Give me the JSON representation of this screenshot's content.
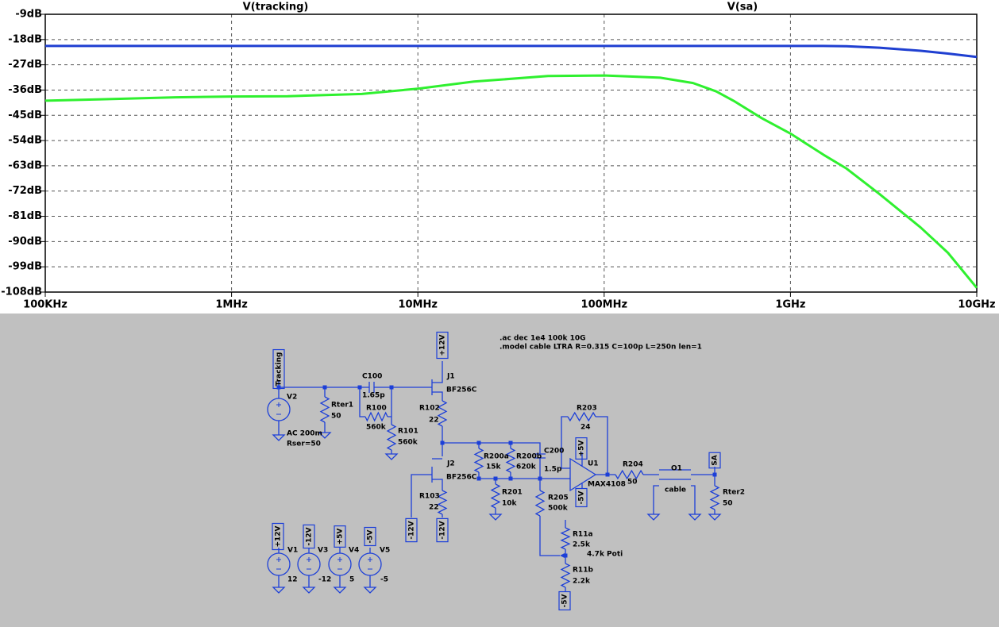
{
  "chart_data": {
    "type": "line",
    "xscale": "log",
    "xlim": [
      100000,
      10000000000
    ],
    "ylim": [
      -108,
      -9
    ],
    "xticks": [
      {
        "value": 100000,
        "label": "100KHz"
      },
      {
        "value": 1000000,
        "label": "1MHz"
      },
      {
        "value": 10000000,
        "label": "10MHz"
      },
      {
        "value": 100000000,
        "label": "100MHz"
      },
      {
        "value": 1000000000,
        "label": "1GHz"
      },
      {
        "value": 10000000000,
        "label": "10GHz"
      }
    ],
    "yticks": [
      {
        "value": -9,
        "label": "-9dB"
      },
      {
        "value": -18,
        "label": "-18dB"
      },
      {
        "value": -27,
        "label": "-27dB"
      },
      {
        "value": -36,
        "label": "-36dB"
      },
      {
        "value": -45,
        "label": "-45dB"
      },
      {
        "value": -54,
        "label": "-54dB"
      },
      {
        "value": -63,
        "label": "-63dB"
      },
      {
        "value": -72,
        "label": "-72dB"
      },
      {
        "value": -81,
        "label": "-81dB"
      },
      {
        "value": -90,
        "label": "-90dB"
      },
      {
        "value": -99,
        "label": "-99dB"
      },
      {
        "value": -108,
        "label": "-108dB"
      }
    ],
    "grid": true,
    "x": [
      100000,
      200000,
      500000,
      1000000,
      2000000,
      5000000,
      10000000,
      20000000,
      50000000,
      100000000,
      200000000,
      300000000,
      400000000,
      500000000,
      700000000,
      1000000000,
      1500000000,
      2000000000,
      3000000000,
      5000000000,
      7000000000,
      10000000000
    ],
    "series": [
      {
        "name": "V(tracking)",
        "color": "#1f3fd1",
        "values": [
          -20.3,
          -20.3,
          -20.3,
          -20.3,
          -20.3,
          -20.3,
          -20.3,
          -20.3,
          -20.3,
          -20.3,
          -20.3,
          -20.3,
          -20.3,
          -20.3,
          -20.3,
          -20.3,
          -20.3,
          -20.4,
          -20.9,
          -22,
          -23,
          -24.2
        ]
      },
      {
        "name": "V(sa)",
        "color": "#2ff02f",
        "values": [
          -39.8,
          -39.3,
          -38.6,
          -38.3,
          -38.2,
          -37.4,
          -35.5,
          -33,
          -31,
          -30.8,
          -31.6,
          -33.5,
          -36.5,
          -40,
          -46,
          -51.5,
          -59,
          -64,
          -73,
          -85,
          -94,
          -106.5
        ]
      }
    ]
  },
  "schematic": {
    "directives": [
      ".ac dec 1e4 100k 10G",
      ".model cable LTRA R=0.315 C=100p L=250n len=1"
    ],
    "labels": [
      "Tracking",
      "V2",
      "AC 200m",
      "Rser=50",
      "Rter1",
      "50",
      "C100",
      "1.65p",
      "R100",
      "560k",
      "R101",
      "560k",
      "+12V",
      "J1",
      "BF256C",
      "R102",
      "22",
      "J2",
      "BF256C",
      "R103",
      "22",
      "-12V",
      "-12V",
      "R200a",
      "15k",
      "R200b",
      "620k",
      "C200",
      "1.5p",
      "R201",
      "10k",
      "R205",
      "500k",
      "R203",
      "24",
      "+5V",
      "U1",
      "MAX4108",
      "-5V",
      "R204",
      "50",
      "O1",
      "cable",
      "SA",
      "Rter2",
      "50",
      "R11a",
      "2.5k",
      "4.7k Poti",
      "R11b",
      "2.2k",
      "-5V",
      "+12V",
      "V1",
      "12",
      "-12V",
      "V3",
      "-12",
      "+5V",
      "V4",
      "5",
      "-5V",
      "V5",
      "-5"
    ]
  }
}
